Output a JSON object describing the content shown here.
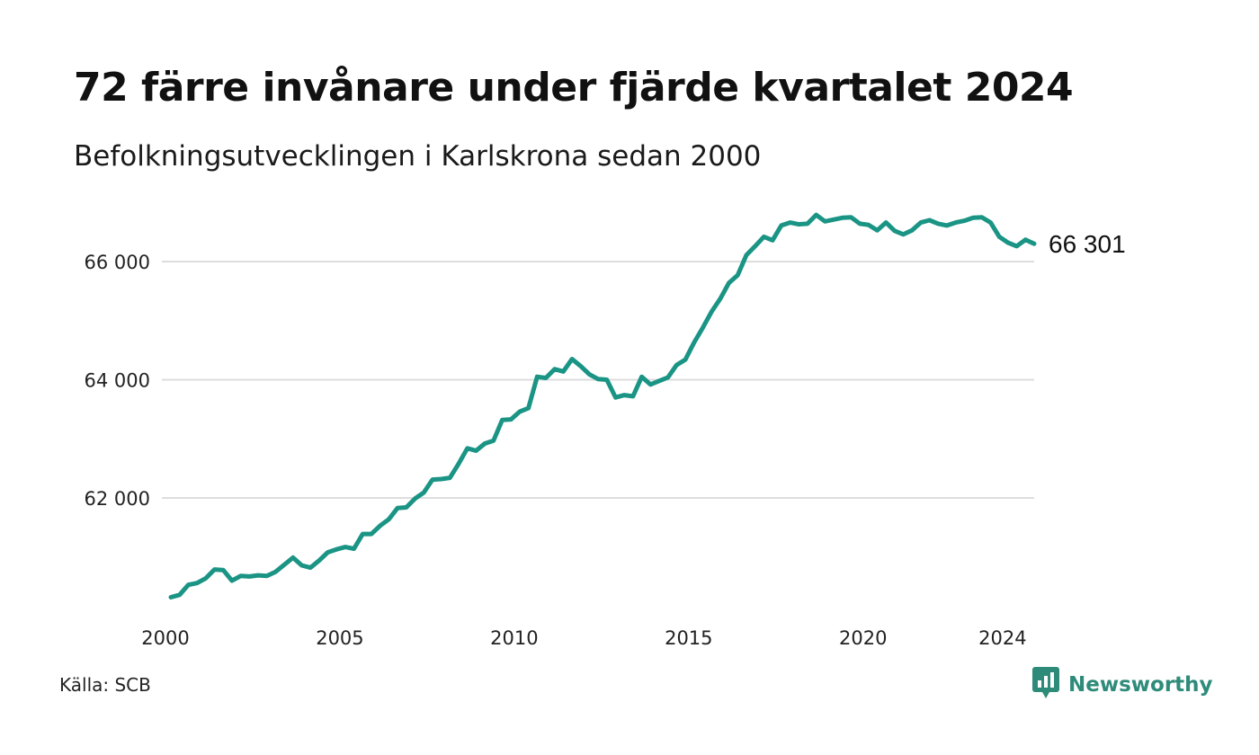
{
  "header": {
    "title": "72 färre invånare under fjärde kvartalet 2024",
    "subtitle": "Befolkningsutvecklingen i Karlskrona sedan 2000"
  },
  "footer": {
    "source": "Källa: SCB",
    "brand": "Newsworthy"
  },
  "colors": {
    "line": "#1a9484",
    "grid": "#dddddd",
    "brand": "#2e8b7a"
  },
  "icons": {
    "brand_logo": "newsworthy-logo-icon"
  },
  "chart_data": {
    "type": "line",
    "title": "72 färre invånare under fjärde kvartalet 2024",
    "subtitle": "Befolkningsutvecklingen i Karlskrona sedan 2000",
    "xlabel": "",
    "ylabel": "",
    "x_ticks": [
      2000,
      2005,
      2010,
      2015,
      2020,
      2024
    ],
    "y_ticks": [
      62000,
      64000,
      66000
    ],
    "y_tick_labels": [
      "62 000",
      "64 000",
      "66 000"
    ],
    "ylim": [
      60000,
      67300
    ],
    "xlim": [
      2000,
      2024.75
    ],
    "grid": "horizontal",
    "end_label": "66 301",
    "series": [
      {
        "values": [
          60320,
          60360,
          60530,
          60560,
          60640,
          60790,
          60780,
          60600,
          60680,
          60670,
          60690,
          60680,
          60750,
          60870,
          60990,
          60860,
          60820,
          60940,
          61080,
          61130,
          61170,
          61140,
          61390,
          61390,
          61530,
          61640,
          61830,
          61840,
          61990,
          62090,
          62310,
          62320,
          62340,
          62580,
          62840,
          62800,
          62920,
          62970,
          63320,
          63330,
          63460,
          63520,
          64050,
          64030,
          64180,
          64140,
          64350,
          64230,
          64090,
          64010,
          64000,
          63700,
          63740,
          63720,
          64050,
          63920,
          63980,
          64040,
          64250,
          64340,
          64630,
          64880,
          65150,
          65370,
          65640,
          65770,
          66110,
          66260,
          66420,
          66360,
          66610,
          66660,
          66630,
          66640,
          66790,
          66680,
          66710,
          66740,
          66750,
          66640,
          66620,
          66530,
          66660,
          66520,
          66460,
          66530,
          66660,
          66700,
          66640,
          66610,
          66660,
          66690,
          66740,
          66750,
          66660,
          66420,
          66320,
          66260,
          66370,
          66301
        ]
      }
    ]
  }
}
